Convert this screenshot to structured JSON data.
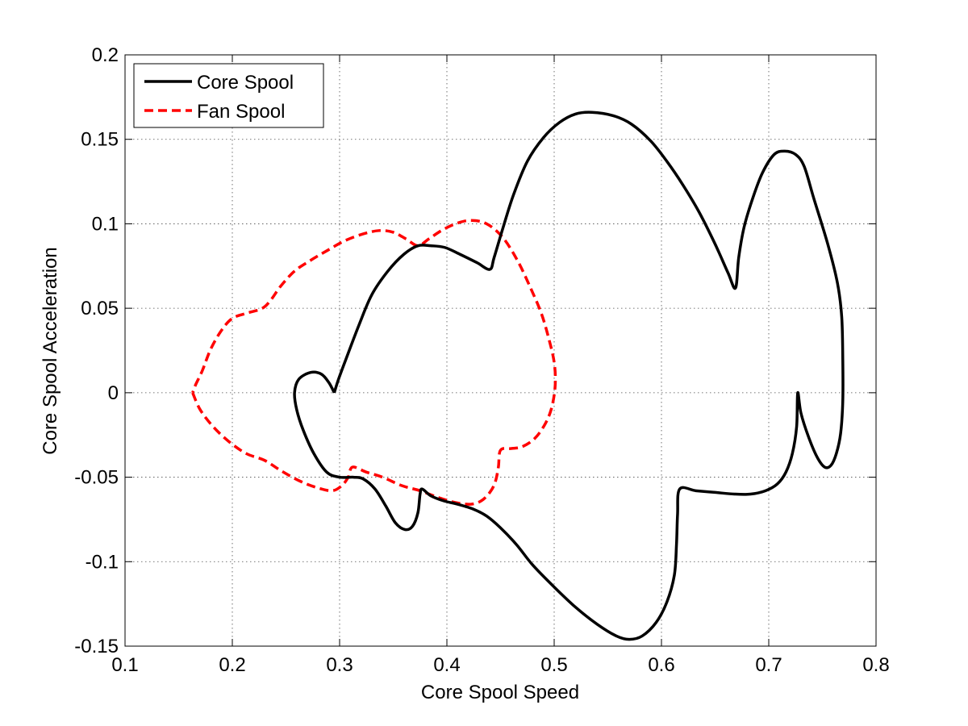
{
  "chart_data": {
    "type": "line",
    "title": "",
    "xlabel": "Core Spool Speed",
    "ylabel": "Core Spool Acceleration",
    "xlim": [
      0.1,
      0.8
    ],
    "ylim": [
      -0.15,
      0.2
    ],
    "xticks": [
      0.1,
      0.2,
      0.3,
      0.4,
      0.5,
      0.6,
      0.7,
      0.8
    ],
    "yticks": [
      -0.15,
      -0.1,
      -0.05,
      0,
      0.05,
      0.1,
      0.15,
      0.2
    ],
    "xtick_labels": [
      "0.1",
      "0.2",
      "0.3",
      "0.4",
      "0.5",
      "0.6",
      "0.7",
      "0.8"
    ],
    "ytick_labels": [
      "-0.15",
      "-0.1",
      "-0.05",
      "0",
      "0.05",
      "0.1",
      "0.15",
      "0.2"
    ],
    "grid": true,
    "legend_position": "top-left",
    "series": [
      {
        "name": "Core Spool",
        "color": "#000000",
        "style": "solid",
        "points": [
          [
            0.295,
            0.0
          ],
          [
            0.29,
            0.006
          ],
          [
            0.283,
            0.011
          ],
          [
            0.273,
            0.012
          ],
          [
            0.262,
            0.008
          ],
          [
            0.258,
            0.0
          ],
          [
            0.26,
            -0.01
          ],
          [
            0.266,
            -0.022
          ],
          [
            0.276,
            -0.036
          ],
          [
            0.288,
            -0.047
          ],
          [
            0.3,
            -0.05
          ],
          [
            0.313,
            -0.05
          ],
          [
            0.322,
            -0.051
          ],
          [
            0.333,
            -0.057
          ],
          [
            0.343,
            -0.067
          ],
          [
            0.352,
            -0.077
          ],
          [
            0.361,
            -0.081
          ],
          [
            0.368,
            -0.079
          ],
          [
            0.373,
            -0.071
          ],
          [
            0.375,
            -0.06
          ],
          [
            0.377,
            -0.057
          ],
          [
            0.385,
            -0.061
          ],
          [
            0.397,
            -0.064
          ],
          [
            0.41,
            -0.066
          ],
          [
            0.425,
            -0.069
          ],
          [
            0.437,
            -0.073
          ],
          [
            0.45,
            -0.08
          ],
          [
            0.465,
            -0.09
          ],
          [
            0.48,
            -0.102
          ],
          [
            0.5,
            -0.115
          ],
          [
            0.52,
            -0.127
          ],
          [
            0.54,
            -0.137
          ],
          [
            0.558,
            -0.144
          ],
          [
            0.57,
            -0.146
          ],
          [
            0.582,
            -0.144
          ],
          [
            0.595,
            -0.136
          ],
          [
            0.605,
            -0.124
          ],
          [
            0.612,
            -0.108
          ],
          [
            0.614,
            -0.09
          ],
          [
            0.615,
            -0.072
          ],
          [
            0.617,
            -0.057
          ],
          [
            0.632,
            -0.058
          ],
          [
            0.65,
            -0.059
          ],
          [
            0.668,
            -0.06
          ],
          [
            0.683,
            -0.06
          ],
          [
            0.697,
            -0.058
          ],
          [
            0.708,
            -0.054
          ],
          [
            0.716,
            -0.047
          ],
          [
            0.722,
            -0.036
          ],
          [
            0.726,
            -0.02
          ],
          [
            0.727,
            0.0
          ],
          [
            0.73,
            -0.012
          ],
          [
            0.737,
            -0.026
          ],
          [
            0.745,
            -0.038
          ],
          [
            0.752,
            -0.044
          ],
          [
            0.758,
            -0.043
          ],
          [
            0.763,
            -0.036
          ],
          [
            0.767,
            -0.024
          ],
          [
            0.769,
            -0.005
          ],
          [
            0.769,
            0.02
          ],
          [
            0.768,
            0.045
          ],
          [
            0.764,
            0.065
          ],
          [
            0.755,
            0.088
          ],
          [
            0.742,
            0.115
          ],
          [
            0.733,
            0.134
          ],
          [
            0.725,
            0.141
          ],
          [
            0.715,
            0.143
          ],
          [
            0.705,
            0.141
          ],
          [
            0.694,
            0.13
          ],
          [
            0.685,
            0.115
          ],
          [
            0.677,
            0.098
          ],
          [
            0.672,
            0.08
          ],
          [
            0.669,
            0.062
          ],
          [
            0.662,
            0.071
          ],
          [
            0.65,
            0.088
          ],
          [
            0.635,
            0.107
          ],
          [
            0.62,
            0.123
          ],
          [
            0.605,
            0.137
          ],
          [
            0.59,
            0.149
          ],
          [
            0.572,
            0.159
          ],
          [
            0.555,
            0.164
          ],
          [
            0.535,
            0.166
          ],
          [
            0.52,
            0.165
          ],
          [
            0.505,
            0.16
          ],
          [
            0.49,
            0.151
          ],
          [
            0.475,
            0.137
          ],
          [
            0.462,
            0.117
          ],
          [
            0.452,
            0.097
          ],
          [
            0.444,
            0.08
          ],
          [
            0.44,
            0.073
          ],
          [
            0.428,
            0.077
          ],
          [
            0.412,
            0.082
          ],
          [
            0.398,
            0.086
          ],
          [
            0.385,
            0.087
          ],
          [
            0.373,
            0.087
          ],
          [
            0.36,
            0.082
          ],
          [
            0.345,
            0.072
          ],
          [
            0.33,
            0.058
          ],
          [
            0.318,
            0.04
          ],
          [
            0.306,
            0.02
          ],
          [
            0.299,
            0.008
          ],
          [
            0.295,
            0.0
          ]
        ]
      },
      {
        "name": "Fan Spool",
        "color": "#ff0000",
        "style": "dashed",
        "points": [
          [
            0.163,
            0.0
          ],
          [
            0.17,
            -0.01
          ],
          [
            0.182,
            -0.02
          ],
          [
            0.197,
            -0.029
          ],
          [
            0.213,
            -0.036
          ],
          [
            0.23,
            -0.04
          ],
          [
            0.245,
            -0.046
          ],
          [
            0.262,
            -0.052
          ],
          [
            0.278,
            -0.056
          ],
          [
            0.293,
            -0.058
          ],
          [
            0.302,
            -0.055
          ],
          [
            0.308,
            -0.05
          ],
          [
            0.312,
            -0.044
          ],
          [
            0.325,
            -0.047
          ],
          [
            0.34,
            -0.05
          ],
          [
            0.358,
            -0.055
          ],
          [
            0.375,
            -0.058
          ],
          [
            0.392,
            -0.062
          ],
          [
            0.408,
            -0.065
          ],
          [
            0.422,
            -0.066
          ],
          [
            0.432,
            -0.064
          ],
          [
            0.44,
            -0.059
          ],
          [
            0.445,
            -0.053
          ],
          [
            0.448,
            -0.044
          ],
          [
            0.45,
            -0.034
          ],
          [
            0.46,
            -0.033
          ],
          [
            0.47,
            -0.032
          ],
          [
            0.482,
            -0.027
          ],
          [
            0.492,
            -0.018
          ],
          [
            0.498,
            -0.008
          ],
          [
            0.501,
            0.005
          ],
          [
            0.5,
            0.018
          ],
          [
            0.495,
            0.032
          ],
          [
            0.488,
            0.047
          ],
          [
            0.478,
            0.062
          ],
          [
            0.466,
            0.078
          ],
          [
            0.452,
            0.092
          ],
          [
            0.437,
            0.1
          ],
          [
            0.422,
            0.102
          ],
          [
            0.408,
            0.1
          ],
          [
            0.395,
            0.096
          ],
          [
            0.383,
            0.091
          ],
          [
            0.373,
            0.087
          ],
          [
            0.362,
            0.091
          ],
          [
            0.35,
            0.095
          ],
          [
            0.337,
            0.096
          ],
          [
            0.322,
            0.094
          ],
          [
            0.305,
            0.09
          ],
          [
            0.288,
            0.084
          ],
          [
            0.272,
            0.078
          ],
          [
            0.258,
            0.072
          ],
          [
            0.245,
            0.063
          ],
          [
            0.236,
            0.055
          ],
          [
            0.228,
            0.05
          ],
          [
            0.213,
            0.047
          ],
          [
            0.2,
            0.044
          ],
          [
            0.19,
            0.037
          ],
          [
            0.18,
            0.026
          ],
          [
            0.172,
            0.013
          ],
          [
            0.166,
            0.005
          ],
          [
            0.163,
            0.0
          ]
        ]
      }
    ]
  }
}
